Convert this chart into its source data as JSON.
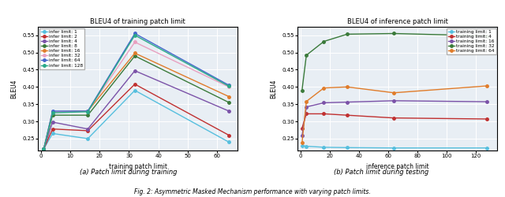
{
  "left": {
    "title": "BLEU4 of training patch limit",
    "xlabel": "training patch limit",
    "ylabel": "BLEU4",
    "xlim": [
      -1,
      67
    ],
    "ylim": [
      0.215,
      0.575
    ],
    "xticks": [
      0,
      10,
      20,
      30,
      40,
      50,
      60
    ],
    "yticks": [
      0.25,
      0.3,
      0.35,
      0.4,
      0.45,
      0.5,
      0.55
    ],
    "x": [
      1,
      4,
      16,
      32,
      64
    ],
    "series": [
      {
        "label": "infer limit: 1",
        "color": "#56bfde",
        "marker": "o",
        "values": [
          0.22,
          0.265,
          0.25,
          0.39,
          0.24
        ]
      },
      {
        "label": "infer limit: 2",
        "color": "#c03030",
        "marker": "o",
        "values": [
          0.22,
          0.278,
          0.273,
          0.408,
          0.26
        ]
      },
      {
        "label": "infer limit: 4",
        "color": "#7b52a8",
        "marker": "o",
        "values": [
          0.22,
          0.298,
          0.278,
          0.447,
          0.33
        ]
      },
      {
        "label": "infer limit: 8",
        "color": "#3a7a3a",
        "marker": "o",
        "values": [
          0.22,
          0.318,
          0.318,
          0.49,
          0.355
        ]
      },
      {
        "label": "infer limit: 16",
        "color": "#e07c2a",
        "marker": "o",
        "values": [
          0.22,
          0.328,
          0.33,
          0.498,
          0.372
        ]
      },
      {
        "label": "infer limit: 32",
        "color": "#e8a0c0",
        "marker": "o",
        "values": [
          0.22,
          0.328,
          0.33,
          0.53,
          0.4
        ]
      },
      {
        "label": "infer limit: 64",
        "color": "#4466cc",
        "marker": "o",
        "values": [
          0.22,
          0.33,
          0.33,
          0.555,
          0.405
        ]
      },
      {
        "label": "infer limit: 128",
        "color": "#2aaa88",
        "marker": "o",
        "values": [
          0.22,
          0.325,
          0.328,
          0.55,
          0.402
        ]
      }
    ]
  },
  "right": {
    "title": "BLEU4 of inference patch limit",
    "xlabel": "inference patch limit",
    "ylabel": "BLEU4",
    "xlim": [
      -2,
      135
    ],
    "ylim": [
      0.215,
      0.575
    ],
    "xticks": [
      0,
      20,
      40,
      60,
      80,
      100,
      120
    ],
    "yticks": [
      0.25,
      0.3,
      0.35,
      0.4,
      0.45,
      0.5,
      0.55
    ],
    "x": [
      1,
      4,
      16,
      32,
      64,
      128
    ],
    "series": [
      {
        "label": "training limit: 1",
        "color": "#56bfde",
        "marker": "o",
        "values": [
          0.23,
          0.228,
          0.225,
          0.224,
          0.223,
          0.223
        ]
      },
      {
        "label": "training limit: 4",
        "color": "#c03030",
        "marker": "o",
        "values": [
          0.28,
          0.322,
          0.322,
          0.318,
          0.31,
          0.307
        ]
      },
      {
        "label": "training limit: 16",
        "color": "#7b52a8",
        "marker": "o",
        "values": [
          0.258,
          0.342,
          0.354,
          0.356,
          0.36,
          0.357
        ]
      },
      {
        "label": "training limit: 32",
        "color": "#3a7a3a",
        "marker": "o",
        "values": [
          0.39,
          0.492,
          0.532,
          0.553,
          0.555,
          0.548
        ]
      },
      {
        "label": "training limit: 64",
        "color": "#e07c2a",
        "marker": "o",
        "values": [
          0.238,
          0.358,
          0.397,
          0.4,
          0.383,
          0.403
        ]
      }
    ]
  },
  "fig_caption": "Fig. 2: Asymmetric Masked Mechanism performance with varying patch limits.",
  "sub_a": "(a) Patch limit during training",
  "sub_b": "(b) Patch limit during testing",
  "bg_color": "#e8eef4"
}
